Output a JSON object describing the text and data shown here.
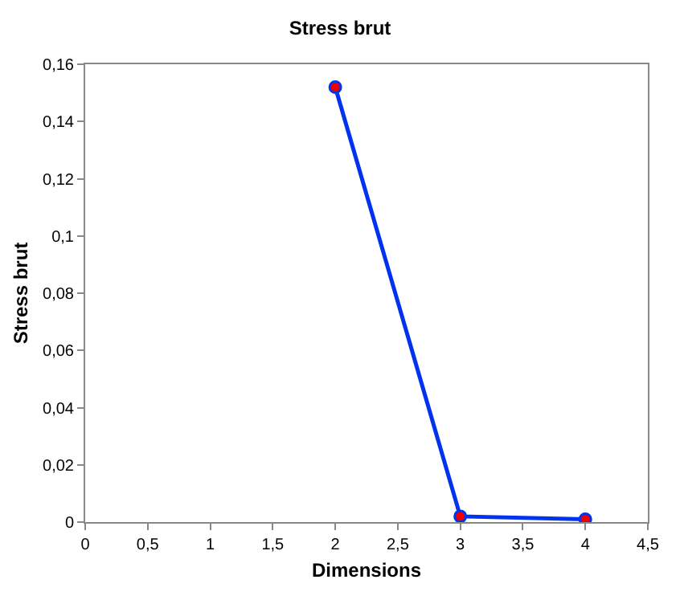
{
  "chart_data": {
    "type": "line",
    "title": "Stress brut",
    "xlabel": "Dimensions",
    "ylabel": "Stress brut",
    "x": [
      2,
      3,
      4
    ],
    "series": [
      {
        "color": "#0033ee",
        "colors": [
          "#ee0000",
          "#ee0000",
          "#ee0000"
        ],
        "values": [
          0.152,
          0.002,
          0.001
        ]
      }
    ],
    "xlim": [
      0,
      4.5
    ],
    "ylim": [
      0,
      0.16
    ],
    "xticks": [
      0,
      {
        "value": 0.5,
        "label": "0,5"
      },
      1,
      {
        "value": 1.5,
        "label": "1,5"
      },
      2,
      {
        "value": 2.5,
        "label": "2,5"
      },
      3,
      {
        "value": 3.5,
        "label": "3,5"
      },
      4,
      {
        "value": 4.5,
        "label": "4,5"
      }
    ],
    "yticks": [
      0,
      {
        "value": 0.02,
        "label": "0,02"
      },
      {
        "value": 0.04,
        "label": "0,04"
      },
      {
        "value": 0.06,
        "label": "0,06"
      },
      {
        "value": 0.08,
        "label": "0,08"
      },
      {
        "value": 0.1,
        "label": "0,1"
      },
      {
        "value": 0.12,
        "label": "0,12"
      },
      {
        "value": 0.14,
        "label": "0,14"
      },
      {
        "value": 0.16,
        "label": "0,16"
      }
    ],
    "marker": "circle",
    "line_style": "solid"
  }
}
